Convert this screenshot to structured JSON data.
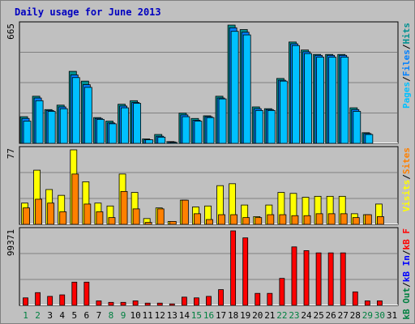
{
  "chart_data": {
    "type": "bar",
    "title": "Daily usage for June 2013",
    "categories": [
      "1",
      "2",
      "3",
      "4",
      "5",
      "6",
      "7",
      "8",
      "9",
      "10",
      "11",
      "12",
      "13",
      "14",
      "15",
      "16",
      "17",
      "18",
      "19",
      "20",
      "21",
      "22",
      "23",
      "24",
      "25",
      "26",
      "27",
      "28",
      "29",
      "30",
      "31"
    ],
    "weekend_categories": [
      "1",
      "2",
      "8",
      "9",
      "15",
      "16",
      "22",
      "23",
      "29",
      "30"
    ],
    "panels": [
      {
        "id": "top",
        "ymax": 665,
        "ymax_label": "665",
        "right_label_parts": [
          "Pages",
          "/",
          "Files",
          "/",
          "Hits"
        ],
        "series": [
          {
            "name": "Hits",
            "color": "#009090",
            "values": [
              150,
              265,
              190,
              215,
              405,
              350,
              145,
              125,
              220,
              240,
              25,
              50,
              10,
              170,
              140,
              155,
              265,
              665,
              640,
              205,
              195,
              365,
              570,
              525,
              500,
              500,
              500,
              200,
              60,
              0,
              0
            ]
          },
          {
            "name": "Files",
            "color": "#0080ff",
            "values": [
              140,
              255,
              185,
              205,
              385,
              330,
              140,
              115,
              210,
              230,
              20,
              40,
              8,
              160,
              130,
              150,
              255,
              650,
              625,
              195,
              190,
              355,
              560,
              515,
              495,
              495,
              495,
              190,
              55,
              0,
              0
            ]
          },
          {
            "name": "Pages",
            "color": "#00c0ff",
            "values": [
              125,
              240,
              180,
              195,
              370,
              315,
              135,
              110,
              200,
              225,
              20,
              35,
              5,
              150,
              125,
              145,
              250,
              630,
              610,
              185,
              185,
              350,
              550,
              505,
              485,
              485,
              485,
              180,
              50,
              0,
              0
            ]
          }
        ]
      },
      {
        "id": "mid",
        "ymax": 77,
        "ymax_label": "77",
        "right_label_parts": [
          "Visits",
          "/",
          "Sites"
        ],
        "series": [
          {
            "name": "Visits",
            "color": "#ffff00",
            "values": [
              22,
              56,
              36,
              30,
              77,
              44,
              22,
              19,
              52,
              33,
              6,
              17,
              3,
              25,
              18,
              19,
              40,
              42,
              20,
              8,
              20,
              33,
              32,
              28,
              29,
              29,
              29,
              11,
              10,
              21,
              0
            ]
          },
          {
            "name": "Sites",
            "color": "#ff8000",
            "values": [
              17,
              26,
              22,
              13,
              52,
              21,
              13,
              7,
              34,
              16,
              2,
              16,
              3,
              25,
              11,
              5,
              10,
              10,
              7,
              7,
              10,
              10,
              9,
              9,
              11,
              11,
              11,
              7,
              10,
              8,
              0
            ]
          }
        ]
      },
      {
        "id": "bot",
        "ymax": 99371,
        "ymax_label": "99371",
        "right_label_parts": [
          "kB Out",
          "/",
          "kB In",
          "/",
          "kB F"
        ],
        "series": [
          {
            "name": "kB F",
            "color": "#ff0000",
            "values": [
              10000,
              17000,
              12000,
              14000,
              31000,
              31000,
              6000,
              4000,
              4000,
              6000,
              3000,
              3000,
              2000,
              11000,
              10000,
              12000,
              21000,
              99371,
              90000,
              16000,
              16000,
              36000,
              78000,
              73000,
              70000,
              70000,
              70000,
              18000,
              6000,
              6000,
              0
            ]
          }
        ]
      }
    ],
    "label_colors": {
      "Pages": "#00c0ff",
      "Files": "#0080ff",
      "Hits": "#009090",
      "Visits": "#ffff00",
      "Sites": "#ff8000",
      "kB Out": "#008040",
      "kB In": "#0000ff",
      "kB F": "#ff0000",
      "separator": "#000000",
      "title": "#0000c0",
      "weekday": "#000000",
      "weekend": "#008040"
    }
  }
}
